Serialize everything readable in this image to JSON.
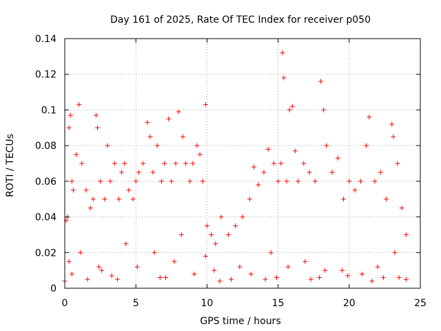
{
  "chart_data": {
    "type": "scatter",
    "title": "Day 161 of 2025, Rate Of TEC Index for receiver p050",
    "xlabel": "GPS time / hours",
    "ylabel": "ROTI / TECUs",
    "xlim": [
      0,
      25
    ],
    "ylim": [
      0,
      0.14
    ],
    "xticks": [
      "0",
      "5",
      "10",
      "15",
      "20",
      "25"
    ],
    "yticks": [
      "0",
      "0.02",
      "0.04",
      "0.06",
      "0.08",
      "0.1",
      "0.12",
      "0.14"
    ],
    "grid": true,
    "marker": "+",
    "color": "#ff0000",
    "series": [
      {
        "x": [
          0.1,
          0.2,
          0.3,
          0.4,
          0.5,
          0.6,
          0.8,
          1.0,
          1.2,
          1.5,
          1.8,
          2.0,
          2.2,
          2.3,
          2.5,
          2.8,
          3.0,
          3.2,
          3.5,
          3.8,
          4.0,
          4.2,
          4.5,
          4.8,
          5.0,
          5.2,
          5.5,
          5.8,
          6.0,
          6.2,
          6.5,
          6.8,
          7.0,
          7.3,
          7.5,
          7.8,
          8.0,
          8.3,
          8.5,
          8.8,
          9.0,
          9.3,
          9.5,
          9.7,
          9.9,
          10.0,
          10.3,
          10.6,
          11.0,
          11.5,
          12.0,
          12.5,
          13.0,
          13.3,
          13.6,
          14.0,
          14.3,
          14.7,
          15.0,
          15.2,
          15.3,
          15.4,
          15.6,
          15.8,
          16.0,
          16.2,
          16.4,
          16.8,
          17.2,
          17.6,
          18.0,
          18.2,
          18.4,
          18.8,
          19.2,
          19.6,
          20.0,
          20.4,
          20.8,
          21.2,
          21.4,
          21.8,
          22.2,
          22.6,
          23.0,
          23.1,
          23.4,
          23.7,
          24.0,
          0.3,
          1.1,
          2.4,
          4.3,
          6.3,
          8.2,
          9.9,
          12.3,
          14.5,
          16.9,
          19.5,
          22.0,
          23.2,
          0.5,
          2.6,
          5.1,
          7.7,
          10.5,
          13.1,
          15.7,
          18.3,
          20.9,
          23.5,
          1.6,
          3.3,
          6.7,
          9.1,
          11.7,
          14.9,
          17.3,
          19.9,
          22.4,
          0.0,
          3.7,
          7.1,
          10.9,
          14.1,
          17.9,
          21.6,
          24.0
        ],
        "y": [
          0.038,
          0.04,
          0.09,
          0.097,
          0.06,
          0.055,
          0.075,
          0.103,
          0.07,
          0.055,
          0.045,
          0.05,
          0.097,
          0.09,
          0.06,
          0.05,
          0.08,
          0.06,
          0.07,
          0.05,
          0.065,
          0.07,
          0.055,
          0.05,
          0.06,
          0.065,
          0.07,
          0.093,
          0.085,
          0.065,
          0.08,
          0.06,
          0.07,
          0.095,
          0.06,
          0.07,
          0.099,
          0.085,
          0.07,
          0.06,
          0.07,
          0.08,
          0.075,
          0.06,
          0.103,
          0.035,
          0.03,
          0.025,
          0.04,
          0.03,
          0.035,
          0.04,
          0.05,
          0.068,
          0.058,
          0.065,
          0.078,
          0.07,
          0.06,
          0.07,
          0.132,
          0.118,
          0.06,
          0.1,
          0.102,
          0.077,
          0.06,
          0.07,
          0.065,
          0.06,
          0.116,
          0.1,
          0.08,
          0.065,
          0.073,
          0.05,
          0.06,
          0.055,
          0.06,
          0.08,
          0.096,
          0.06,
          0.065,
          0.05,
          0.092,
          0.085,
          0.07,
          0.045,
          0.03,
          0.015,
          0.02,
          0.012,
          0.025,
          0.02,
          0.03,
          0.018,
          0.012,
          0.02,
          0.015,
          0.01,
          0.012,
          0.02,
          0.008,
          0.01,
          0.012,
          0.015,
          0.01,
          0.008,
          0.012,
          0.01,
          0.008,
          0.006,
          0.005,
          0.007,
          0.006,
          0.008,
          0.005,
          0.006,
          0.005,
          0.007,
          0.006,
          0.004,
          0.005,
          0.006,
          0.004,
          0.005,
          0.006,
          0.004,
          0.005
        ]
      }
    ]
  }
}
